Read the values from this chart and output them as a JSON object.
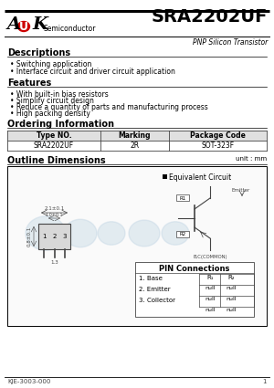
{
  "title": "SRA2202UF",
  "subtitle": "PNP Silicon Transistor",
  "logo_semiconductor": "Semiconductor",
  "section_descriptions": "Descriptions",
  "desc_bullets": [
    "Switching application",
    "Interface circuit and driver circuit application"
  ],
  "section_features": "Features",
  "feat_bullets": [
    "With built-in bias resistors",
    "Simplify circuit design",
    "Reduce a quantity of parts and manufacturing process",
    "High packing density"
  ],
  "section_ordering": "Ordering Information",
  "table_headers": [
    "Type NO.",
    "Marking",
    "Package Code"
  ],
  "table_row": [
    "SRA2202UF",
    "2R",
    "SOT-323F"
  ],
  "section_outline": "Outline Dimensions",
  "unit_label": "unit : mm",
  "equiv_circuit_label": "Equivalent Circuit",
  "pin_connections": "PIN Connections",
  "pin_labels": [
    "1. Base",
    "2. Emitter",
    "3. Collector"
  ],
  "r1_label": "R1",
  "r2_label": "R2",
  "null_label": "null",
  "common_label": "B,C(COMMON)",
  "footer": "KJE-3003-000",
  "page_num": "1",
  "bg_color": "#ffffff",
  "red_color": "#cc0000",
  "black": "#000000",
  "gray": "#888888",
  "darkgray": "#444444",
  "lightgray": "#cccccc",
  "wm_color": "#b8cfe0"
}
